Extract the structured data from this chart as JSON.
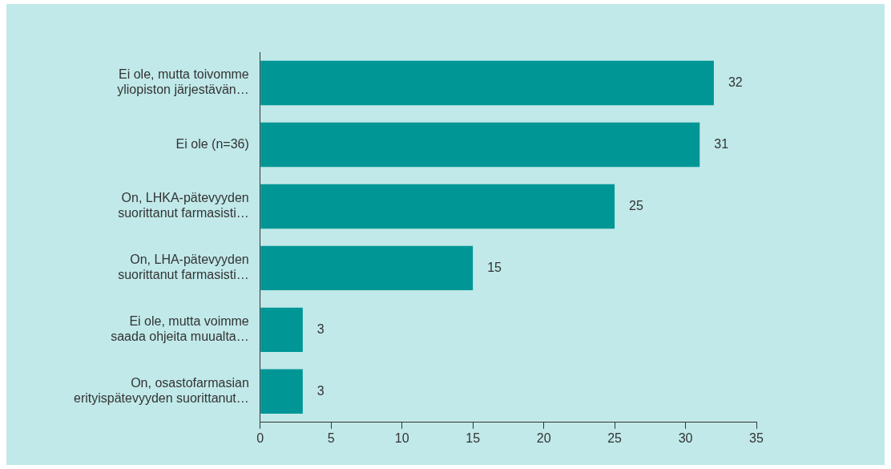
{
  "chart_data": {
    "type": "bar",
    "orientation": "horizontal",
    "categories": [
      "Ei ole, mutta toivomme yliopiston järjestävän…",
      "Ei ole (n=36)",
      "On, LHKA-pätevyyden suorittanut farmasisti…",
      "On, LHA-pätevyyden suorittanut farmasisti…",
      "Ei ole, mutta voimme saada ohjeita muualta…",
      "On, osastofarmasian erityispätevyyden suorittanut…"
    ],
    "values": [
      32,
      31,
      25,
      15,
      3,
      3
    ],
    "color": "#009696",
    "xlim": [
      0,
      35
    ],
    "xticks": [
      0,
      5,
      10,
      15,
      20,
      25,
      30,
      35
    ],
    "grid": false,
    "legend": false,
    "data_labels": true
  }
}
